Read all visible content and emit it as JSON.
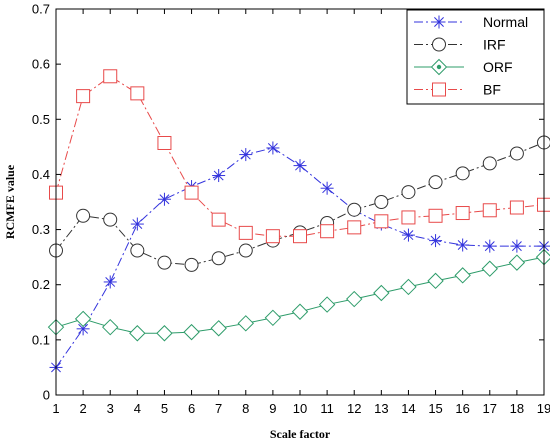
{
  "chart_data": {
    "type": "line",
    "xlabel": "Scale factor",
    "ylabel": "RCMFE value",
    "x": [
      1,
      2,
      3,
      4,
      5,
      6,
      7,
      8,
      9,
      10,
      11,
      12,
      13,
      14,
      15,
      16,
      17,
      18,
      19
    ],
    "xlim": [
      1,
      19
    ],
    "ylim": [
      0,
      0.7
    ],
    "xticks": [
      1,
      2,
      3,
      4,
      5,
      6,
      7,
      8,
      9,
      10,
      11,
      12,
      13,
      14,
      15,
      16,
      17,
      18,
      19
    ],
    "yticks": [
      0,
      0.1,
      0.2,
      0.3,
      0.4,
      0.5,
      0.6,
      0.7
    ],
    "grid": false,
    "legend_position": "top-right",
    "series": [
      {
        "name": "Normal",
        "color": "#3333dd",
        "marker": "asterisk",
        "line_style": "dash-dot",
        "values": [
          0.05,
          0.12,
          0.205,
          0.31,
          0.355,
          0.378,
          0.398,
          0.436,
          0.448,
          0.416,
          0.375,
          0.335,
          0.31,
          0.29,
          0.28,
          0.272,
          0.27,
          0.27,
          0.27
        ]
      },
      {
        "name": "IRF",
        "color": "#333333",
        "marker": "circle",
        "line_style": "dash-dot",
        "values": [
          0.262,
          0.325,
          0.318,
          0.262,
          0.24,
          0.236,
          0.248,
          0.262,
          0.28,
          0.295,
          0.312,
          0.336,
          0.35,
          0.368,
          0.386,
          0.402,
          0.42,
          0.438,
          0.458
        ]
      },
      {
        "name": "ORF",
        "color": "#2e9c6a",
        "marker": "diamond",
        "line_style": "solid",
        "values": [
          0.123,
          0.138,
          0.123,
          0.112,
          0.112,
          0.114,
          0.121,
          0.13,
          0.14,
          0.151,
          0.164,
          0.174,
          0.185,
          0.196,
          0.207,
          0.217,
          0.229,
          0.24,
          0.25
        ]
      },
      {
        "name": "BF",
        "color": "#e84a4a",
        "marker": "square",
        "line_style": "dash-dot",
        "values": [
          0.367,
          0.542,
          0.578,
          0.547,
          0.457,
          0.367,
          0.318,
          0.294,
          0.288,
          0.288,
          0.297,
          0.304,
          0.315,
          0.322,
          0.325,
          0.33,
          0.335,
          0.34,
          0.345
        ]
      }
    ]
  }
}
